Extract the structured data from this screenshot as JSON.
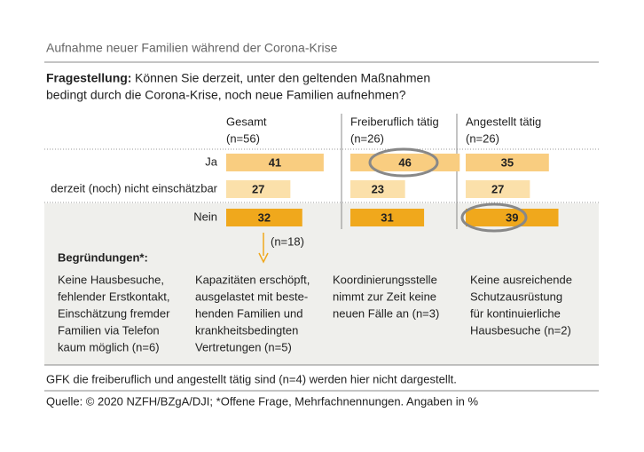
{
  "title": "Aufnahme neuer Familien während der Corona-Krise",
  "question_label": "Fragestellung:",
  "question": [
    "Können Sie derzeit, unter den geltenden Maßnahmen",
    "bedingt durch die Corona-Krise, noch neue Familien aufnehmen?"
  ],
  "chart_data": {
    "type": "bar",
    "categories": [
      "Ja",
      "derzeit (noch) nicht einschätzbar",
      "Nein"
    ],
    "category_colors": [
      "#f9cd80",
      "#fbe0aa",
      "#f0a81c"
    ],
    "series": [
      {
        "name": "Gesamt",
        "n": "(n=56)",
        "values": [
          41,
          27,
          32
        ]
      },
      {
        "name": "Freiberuflich tätig",
        "n": "(n=26)",
        "values": [
          46,
          23,
          31
        ]
      },
      {
        "name": "Angestellt tätig",
        "n": "(n=26)",
        "values": [
          35,
          27,
          39
        ]
      }
    ]
  },
  "reasons": {
    "title": "Begründungen*:",
    "arrow_label": "(n=18)",
    "items": [
      [
        "Keine Hausbesuche,",
        "fehlender Erstkontakt,",
        "Einschätzung fremder",
        "Familien via Telefon",
        "kaum möglich (n=6)"
      ],
      [
        "Kapazitäten erschöpft,",
        "ausgelastet mit beste-",
        "henden Familien und",
        "krankheitsbedingten",
        "Vertretungen (n=5)"
      ],
      [
        "Koordinierungsstelle",
        "nimmt zur Zeit keine",
        "neuen Fälle an (n=3)"
      ],
      [
        "Keine ausreichende",
        "Schutzausrüstung",
        "für kontinuierliche",
        "Hausbesuche (n=2)"
      ]
    ]
  },
  "footnote": "GFK die freiberuflich und angestellt tätig sind (n=4) werden hier nicht dargestellt.",
  "source": "Quelle: © 2020 NZFH/BZgA/DJI; *Offene Frage, Mehrfachnennungen. Angaben in %"
}
